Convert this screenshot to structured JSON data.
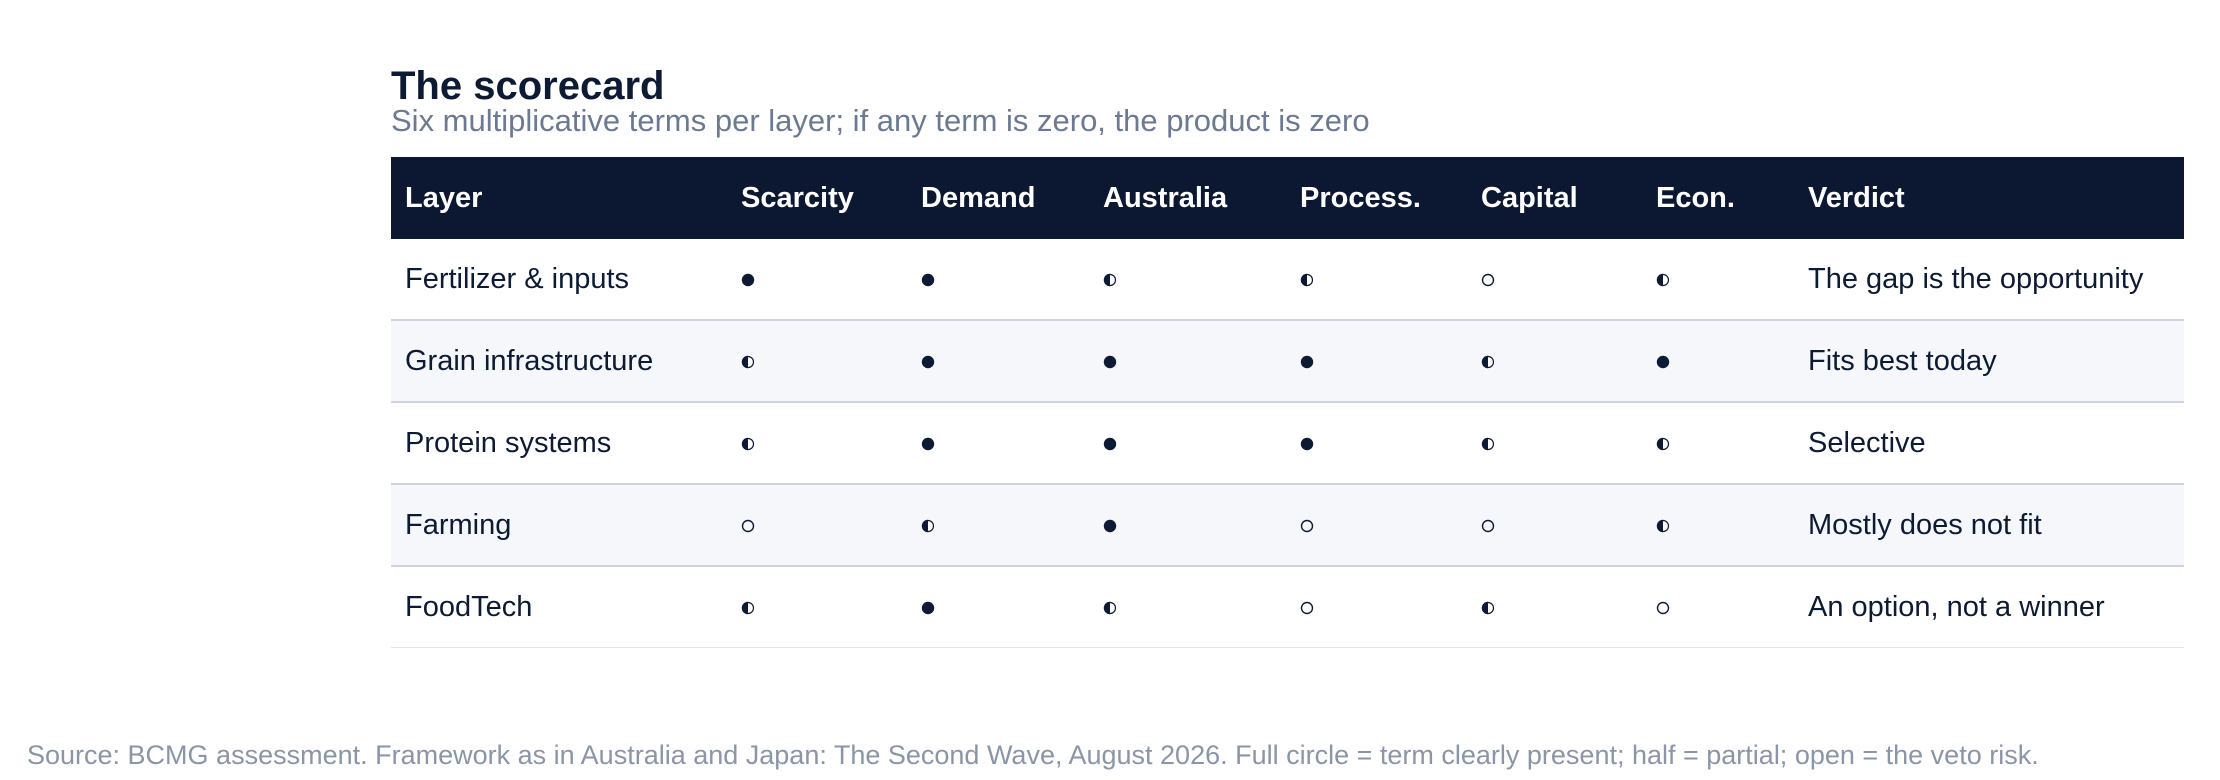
{
  "title": "The scorecard",
  "subtitle": "Six multiplicative terms per layer; if any term is zero, the product is zero",
  "table": {
    "headers": [
      "Layer",
      "Scarcity",
      "Demand",
      "Australia",
      "Process.",
      "Capital",
      "Econ.",
      "Verdict"
    ],
    "rows": [
      {
        "layer": "Fertilizer & inputs",
        "scores": [
          "full",
          "full",
          "half",
          "half",
          "open",
          "half"
        ],
        "verdict": "The gap is the opportunity"
      },
      {
        "layer": "Grain infrastructure",
        "scores": [
          "half",
          "full",
          "full",
          "full",
          "half",
          "full"
        ],
        "verdict": "Fits best today"
      },
      {
        "layer": "Protein systems",
        "scores": [
          "half",
          "full",
          "full",
          "full",
          "half",
          "half"
        ],
        "verdict": "Selective"
      },
      {
        "layer": "Farming",
        "scores": [
          "open",
          "half",
          "full",
          "open",
          "open",
          "half"
        ],
        "verdict": "Mostly does not fit"
      },
      {
        "layer": "FoodTech",
        "scores": [
          "half",
          "full",
          "half",
          "open",
          "half",
          "open"
        ],
        "verdict": "An option, not a winner"
      }
    ]
  },
  "legend_icons": {
    "full": "filled-circle-icon",
    "half": "half-circle-icon",
    "open": "open-circle-icon"
  },
  "colors": {
    "header_bg": "#0c1831",
    "text": "#0d1a33",
    "subtitle": "#6b7a90",
    "row_alt_bg": "#f5f7fb",
    "source": "#8a95a8"
  },
  "source": "Source: BCMG assessment. Framework as in Australia and Japan: The Second Wave, August 2026. Full circle = term clearly present; half = partial; open = the veto risk."
}
